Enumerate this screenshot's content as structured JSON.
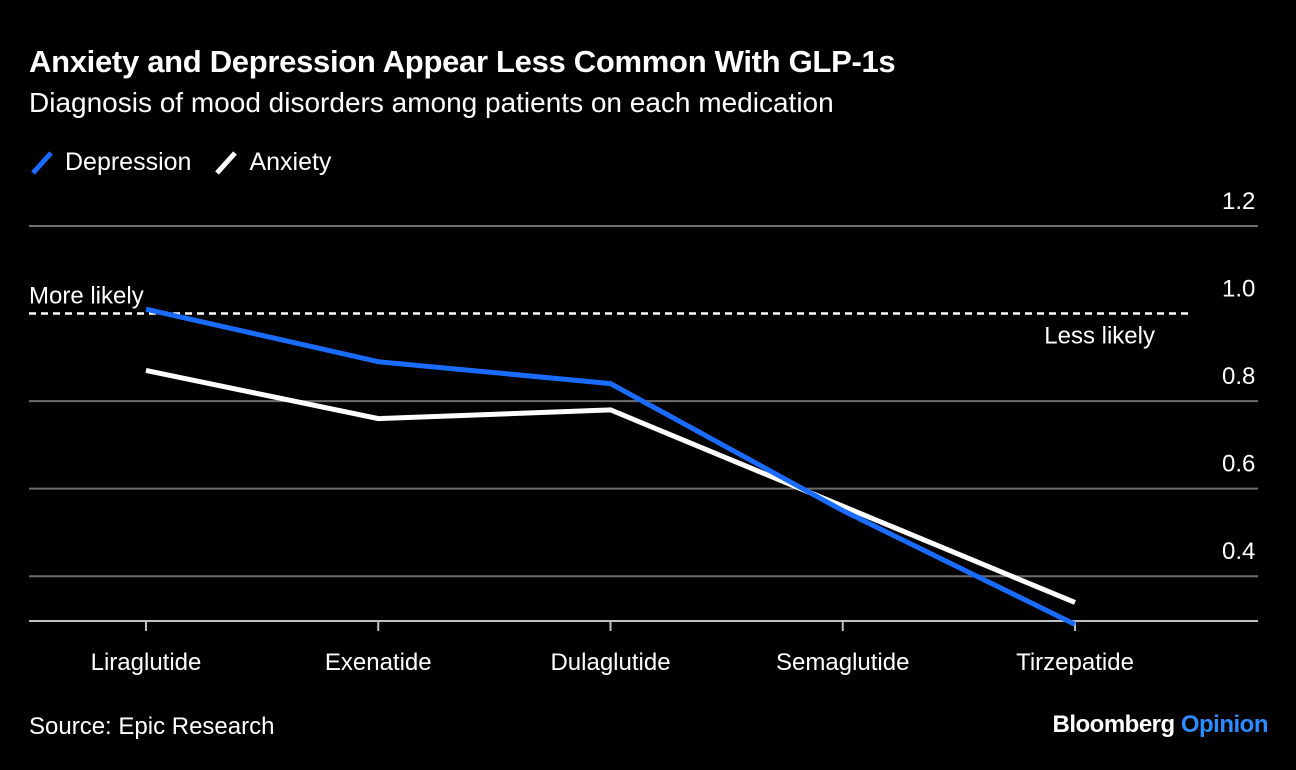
{
  "title": "Anxiety and Depression Appear Less Common With GLP-1s",
  "subtitle": "Diagnosis of mood disorders among patients on each medication",
  "source": "Source: Epic Research",
  "brand": {
    "name": "Bloomberg",
    "section": "Opinion"
  },
  "chart_data": {
    "type": "line",
    "categories": [
      "Liraglutide",
      "Exenatide",
      "Dulaglutide",
      "Semaglutide",
      "Tirzepatide"
    ],
    "series": [
      {
        "name": "Depression",
        "color": "#1a6bff",
        "values": [
          1.01,
          0.89,
          0.84,
          0.55,
          0.29
        ]
      },
      {
        "name": "Anxiety",
        "color": "#ffffff",
        "values": [
          0.87,
          0.76,
          0.78,
          0.56,
          0.34
        ]
      }
    ],
    "ylim": [
      0.3,
      1.2
    ],
    "yticks": [
      0.4,
      0.6,
      0.8,
      1.0,
      1.2
    ],
    "ytick_labels": [
      "0.4",
      "0.6",
      "0.8",
      "1.0",
      "1.2"
    ],
    "reference_line": {
      "value": 1.0,
      "style": "dashed"
    },
    "annotations": {
      "above": "More likely",
      "below": "Less likely"
    },
    "grid": true,
    "legend_position": "top-left"
  }
}
